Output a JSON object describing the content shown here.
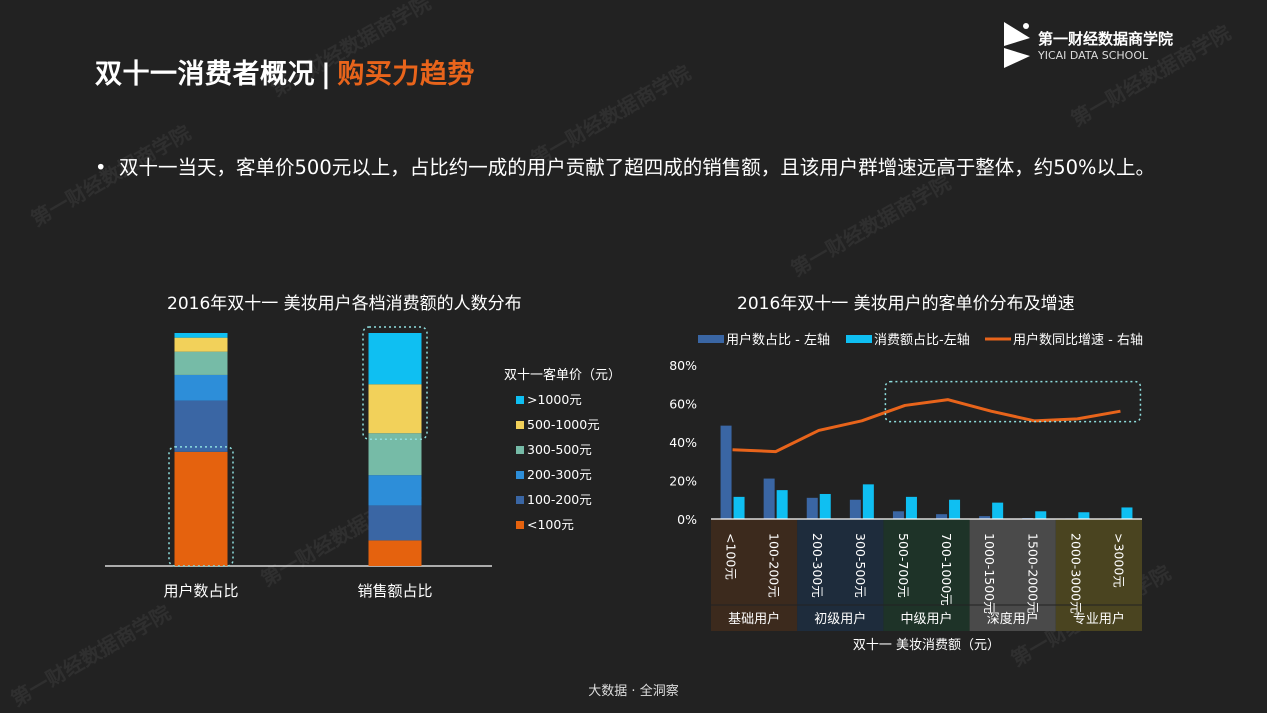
{
  "header": {
    "title_main": "双十一消费者概况",
    "title_sep": "|",
    "title_accent": "购买力趋势"
  },
  "logo": {
    "cn": "第一财经数据商学院",
    "en": "YICAI DATA SCHOOL"
  },
  "watermark": "第一财经数据商学院",
  "bullet": {
    "marker": "•",
    "text": "双十一当天，客单价500元以上，占比约一成的用户贡献了超四成的销售额，且该用户群增速远高于整体，约50%以上。"
  },
  "footer": "大数据 · 全洞察",
  "colors": {
    "orange": "#e5620e",
    "blue_dark": "#3a66a4",
    "blue_mid": "#2d8ed9",
    "teal": "#76bba7",
    "yellow": "#f2d15a",
    "cyan": "#0fbff2",
    "line": "#e8641b"
  },
  "chart_data": [
    {
      "type": "bar",
      "stacked": true,
      "title": "2016年双十一 美妆用户各档消费额的人数分布",
      "categories": [
        "用户数占比",
        "销售额占比"
      ],
      "legend_title": "双十一客单价（元）",
      "series": [
        {
          "name": "<100元",
          "color": "#e5620e",
          "values": [
            49,
            11
          ]
        },
        {
          "name": "100-200元",
          "color": "#3a66a4",
          "values": [
            22,
            15
          ]
        },
        {
          "name": "200-300元",
          "color": "#2d8ed9",
          "values": [
            11,
            13
          ]
        },
        {
          "name": "300-500元",
          "color": "#76bba7",
          "values": [
            10,
            18
          ]
        },
        {
          "name": "500-1000元",
          "color": "#f2d15a",
          "values": [
            6,
            21
          ]
        },
        {
          "name": ">1000元",
          "color": "#0fbff2",
          "values": [
            2,
            22
          ]
        }
      ]
    },
    {
      "type": "bar",
      "title": "2016年双十一 美妆用户的客单价分布及增速",
      "xlabel": "双十一 美妆消费额（元）",
      "categories": [
        "<100元",
        "100-200元",
        "200-300元",
        "300-500元",
        "500-700元",
        "700-1000元",
        "1000-1500元",
        "1500-2000元",
        "2000-3000元",
        ">3000元"
      ],
      "y_ticks": [
        "80%",
        "60%",
        "40%",
        "20%",
        "0%"
      ],
      "ylim": [
        0,
        80
      ],
      "series": [
        {
          "name": "用户数占比 - 左轴",
          "type": "bar",
          "axis": "left",
          "color": "#3a66a4",
          "values": [
            48.5,
            21,
            11,
            10,
            4,
            2.5,
            1.5,
            0.5,
            0.3,
            0.3
          ]
        },
        {
          "name": "消费额占比-左轴",
          "type": "bar",
          "axis": "left",
          "color": "#0fbff2",
          "values": [
            11.5,
            15,
            13,
            18,
            11.5,
            10,
            8.5,
            4,
            3.5,
            6
          ]
        },
        {
          "name": "用户数同比增速 - 右轴",
          "type": "line",
          "axis": "right",
          "color": "#e8641b",
          "values": [
            36,
            35,
            46,
            51,
            59,
            62,
            56,
            51,
            52,
            56
          ]
        }
      ],
      "groups": [
        {
          "name": "基础用户",
          "span": 2,
          "color": "#3c2a1d"
        },
        {
          "name": "初级用户",
          "span": 2,
          "color": "#1e2c3c"
        },
        {
          "name": "中级用户",
          "span": 2,
          "color": "#1e3328"
        },
        {
          "name": "深度用户",
          "span": 2,
          "color": "#4a4a4a"
        },
        {
          "name": "专业用户",
          "span": 2,
          "color": "#4a4420"
        }
      ]
    }
  ]
}
